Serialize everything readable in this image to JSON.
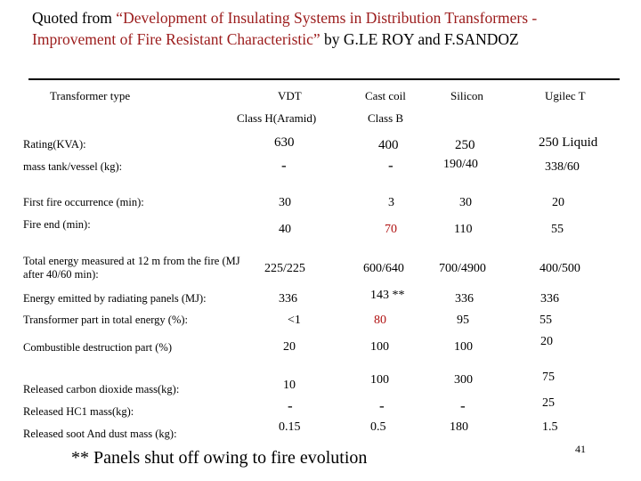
{
  "title": {
    "prefix": "Quoted from ",
    "quoted": "“Development of Insulating Systems in Distribution Transformers - Improvement of Fire Resistant Characteristic”",
    "suffix": " by G.LE ROY and F.SANDOZ"
  },
  "table": {
    "header_label": "Transformer type",
    "columns": [
      {
        "name": "VDT",
        "sub": "Class H(Aramid)"
      },
      {
        "name": "Cast coil",
        "sub": "Class B"
      },
      {
        "name": "Silicon",
        "sub": ""
      },
      {
        "name": "Ugilec T",
        "sub": ""
      }
    ],
    "rows": [
      {
        "label": "Rating(KVA):",
        "values": [
          "630",
          "400",
          "250",
          "250 Liquid"
        ]
      },
      {
        "label": "mass tank/vessel (kg):",
        "values": [
          "-",
          "-",
          "190/40",
          "338/60"
        ]
      },
      {
        "label": "First fire occurrence (min):",
        "values": [
          "30",
          "3",
          "30",
          "20"
        ]
      },
      {
        "label": "Fire end (min):",
        "values": [
          "40",
          "70",
          "110",
          "55"
        ]
      },
      {
        "label": "Total energy measured at 12 m from the fire (MJ after 40/60 min):",
        "values": [
          "225/225",
          "600/640",
          "700/4900",
          "400/500"
        ]
      },
      {
        "label": "Energy emitted by radiating panels (MJ):",
        "values": [
          "336",
          "143 **",
          "336",
          "336"
        ]
      },
      {
        "label": "Transformer part in total energy (%):",
        "values": [
          "<1",
          "80",
          "95",
          "55"
        ]
      },
      {
        "label": "Combustible destruction part (%)",
        "values": [
          "20",
          "100",
          "100",
          "20"
        ]
      },
      {
        "label": "Released carbon dioxide mass(kg):",
        "values": [
          "10",
          "100",
          "300",
          "75"
        ]
      },
      {
        "label": "Released HC1 mass(kg):",
        "values": [
          "-",
          "-",
          "-",
          "25"
        ]
      },
      {
        "label": "Released soot And dust mass (kg):",
        "values": [
          "0.15",
          "0.5",
          "180",
          "1.5"
        ]
      }
    ]
  },
  "colors": {
    "title_highlight": "#9b1b1b",
    "red_value": "#b01010"
  },
  "footnote": "** Panels shut off owing to fire evolution",
  "page_number": "41"
}
